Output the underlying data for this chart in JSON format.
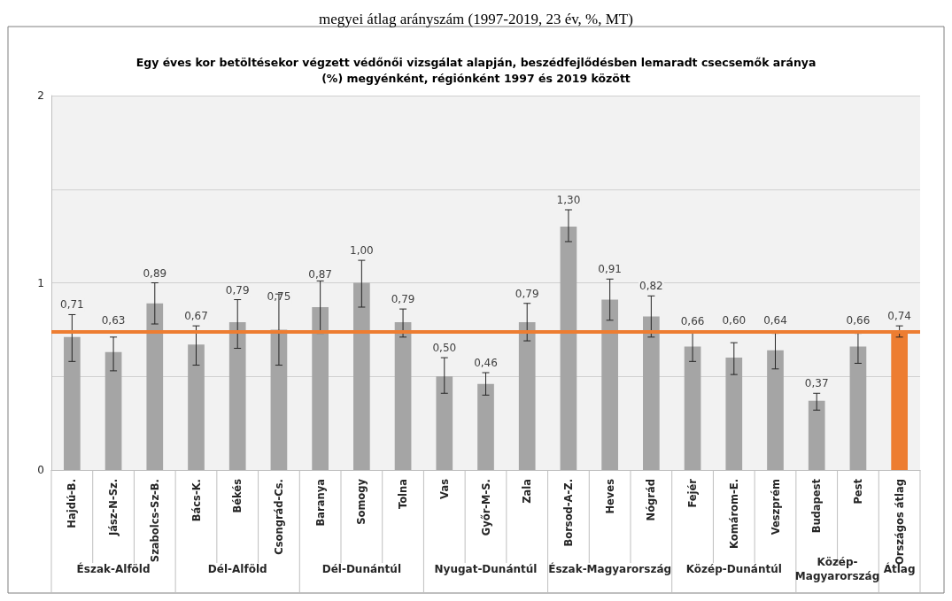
{
  "chart_data": {
    "type": "bar",
    "subtitle": "megyei átlag arányszám (1997-2019, 23 év, %, MT)",
    "title": "Egy éves kor betöltésekor végzett védőnői vizsgálat alapján, beszédfejlődésben lemaradt csecsemők aránya\n(%) megyénként, régiónként 1997 és 2019 között",
    "categories": [
      "Hajdú-B.",
      "Jász-N-Sz.",
      "Szabolcs-Sz-B.",
      "Bács-K.",
      "Békés",
      "Csongrád-Cs.",
      "Baranya",
      "Somogy",
      "Tolna",
      "Vas",
      "Győr-M-S.",
      "Zala",
      "Borsod-A-Z.",
      "Heves",
      "Nógrád",
      "Fejér",
      "Komárom-E.",
      "Veszprém",
      "Budapest",
      "Pest",
      "Országos átlag"
    ],
    "values": [
      0.71,
      0.63,
      0.89,
      0.67,
      0.79,
      0.75,
      0.87,
      1.0,
      0.79,
      0.5,
      0.46,
      0.79,
      1.3,
      0.91,
      0.82,
      0.66,
      0.6,
      0.64,
      0.37,
      0.66,
      0.74
    ],
    "colors": [
      "#a5a5a5",
      "#a5a5a5",
      "#a5a5a5",
      "#a5a5a5",
      "#a5a5a5",
      "#a5a5a5",
      "#a5a5a5",
      "#a5a5a5",
      "#a5a5a5",
      "#a5a5a5",
      "#a5a5a5",
      "#a5a5a5",
      "#a5a5a5",
      "#a5a5a5",
      "#a5a5a5",
      "#a5a5a5",
      "#a5a5a5",
      "#a5a5a5",
      "#a5a5a5",
      "#a5a5a5",
      "#ed7d31"
    ],
    "errors": [
      [
        0.58,
        0.83
      ],
      [
        0.53,
        0.71
      ],
      [
        0.78,
        1.0
      ],
      [
        0.56,
        0.77
      ],
      [
        0.65,
        0.91
      ],
      [
        0.56,
        0.94
      ],
      [
        0.73,
        1.01
      ],
      [
        0.87,
        1.12
      ],
      [
        0.71,
        0.86
      ],
      [
        0.41,
        0.6
      ],
      [
        0.4,
        0.52
      ],
      [
        0.69,
        0.89
      ],
      [
        1.22,
        1.39
      ],
      [
        0.8,
        1.02
      ],
      [
        0.71,
        0.93
      ],
      [
        0.58,
        0.74
      ],
      [
        0.51,
        0.68
      ],
      [
        0.54,
        0.73
      ],
      [
        0.32,
        0.41
      ],
      [
        0.57,
        0.73
      ],
      [
        0.71,
        0.77
      ]
    ],
    "value_labels": [
      "0,71",
      "0,63",
      "0,89",
      "0,67",
      "0,79",
      "0,75",
      "0,87",
      "1,00",
      "0,79",
      "0,50",
      "0,46",
      "0,79",
      "1,30",
      "0,91",
      "0,82",
      "0,66",
      "0,60",
      "0,64",
      "0,37",
      "0,66",
      "0,74"
    ],
    "ylim": [
      0,
      2
    ],
    "yticks": [
      0,
      {
        "value": 0.5,
        "label": null
      },
      1,
      {
        "value": 1.5,
        "label": null
      },
      2
    ],
    "grid": "y",
    "ref_lines": [
      {
        "axis": "y",
        "value": 0.74,
        "color": "#ed7d31"
      }
    ],
    "annotations": [
      "Észak-Alföld",
      "Dél-Alföld",
      "Dél-Dunántúl",
      "Nyugat-Dunántúl",
      "Észak-Magyarország",
      "Közép-Dunántúl",
      "Közép-\nMagyarország",
      "Átlag"
    ]
  }
}
